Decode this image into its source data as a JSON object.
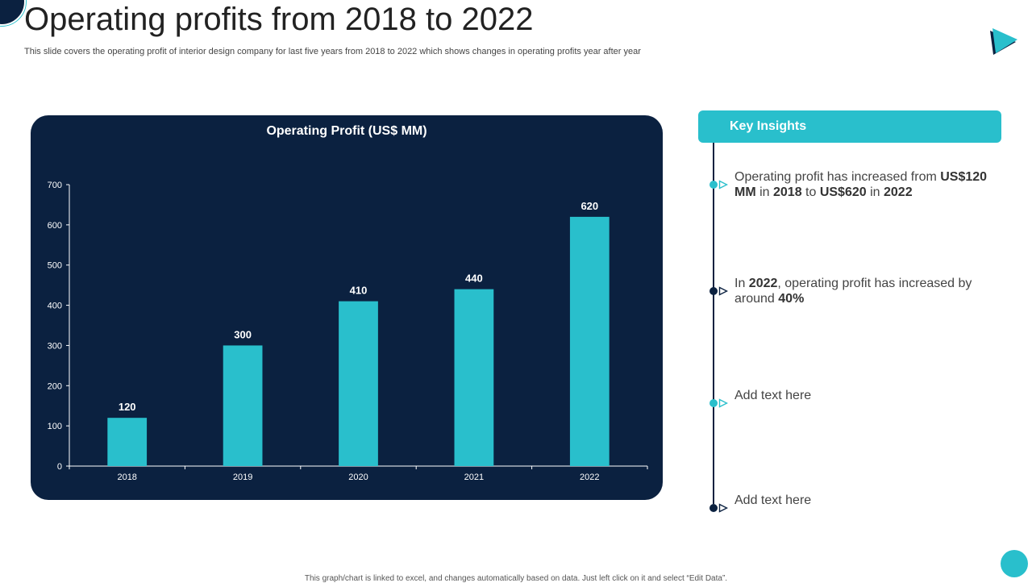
{
  "slide": {
    "title": "Operating profits from 2018 to 2022",
    "subtitle": "This slide covers the operating profit of interior design company for last five years from 2018 to 2022 which shows changes in operating profits year after year",
    "footer": "This graph/chart is linked to excel, and changes automatically based on data. Just left click on it and select “Edit Data”."
  },
  "colors": {
    "navy": "#0b2140",
    "teal": "#29bfcc",
    "white": "#ffffff"
  },
  "chart_data": {
    "type": "bar",
    "title": "Operating Profit (US$ MM)",
    "categories": [
      "2018",
      "2019",
      "2020",
      "2021",
      "2022"
    ],
    "values": [
      120,
      300,
      410,
      440,
      620
    ],
    "xlabel": "",
    "ylabel": "",
    "ylim": [
      0,
      700
    ],
    "yticks": [
      0,
      100,
      200,
      300,
      400,
      500,
      600,
      700
    ],
    "grid": false,
    "legend": "none"
  },
  "insights": {
    "header": "Key Insights",
    "items": [
      {
        "marker_color": "teal",
        "parts": [
          {
            "t": "Operating profit has increased from ",
            "b": false
          },
          {
            "t": "US$120 MM",
            "b": true
          },
          {
            "t": " in ",
            "b": false
          },
          {
            "t": "2018",
            "b": true
          },
          {
            "t": " to ",
            "b": false
          },
          {
            "t": "US$620",
            "b": true
          },
          {
            "t": " in ",
            "b": false
          },
          {
            "t": "2022",
            "b": true
          }
        ]
      },
      {
        "marker_color": "navy",
        "parts": [
          {
            "t": "In ",
            "b": false
          },
          {
            "t": "2022",
            "b": true
          },
          {
            "t": ", operating profit has increased by around ",
            "b": false
          },
          {
            "t": "40%",
            "b": true
          }
        ]
      },
      {
        "marker_color": "teal",
        "parts": [
          {
            "t": "Add text here",
            "b": false
          }
        ]
      },
      {
        "marker_color": "navy",
        "parts": [
          {
            "t": "Add text here",
            "b": false
          }
        ]
      }
    ]
  }
}
